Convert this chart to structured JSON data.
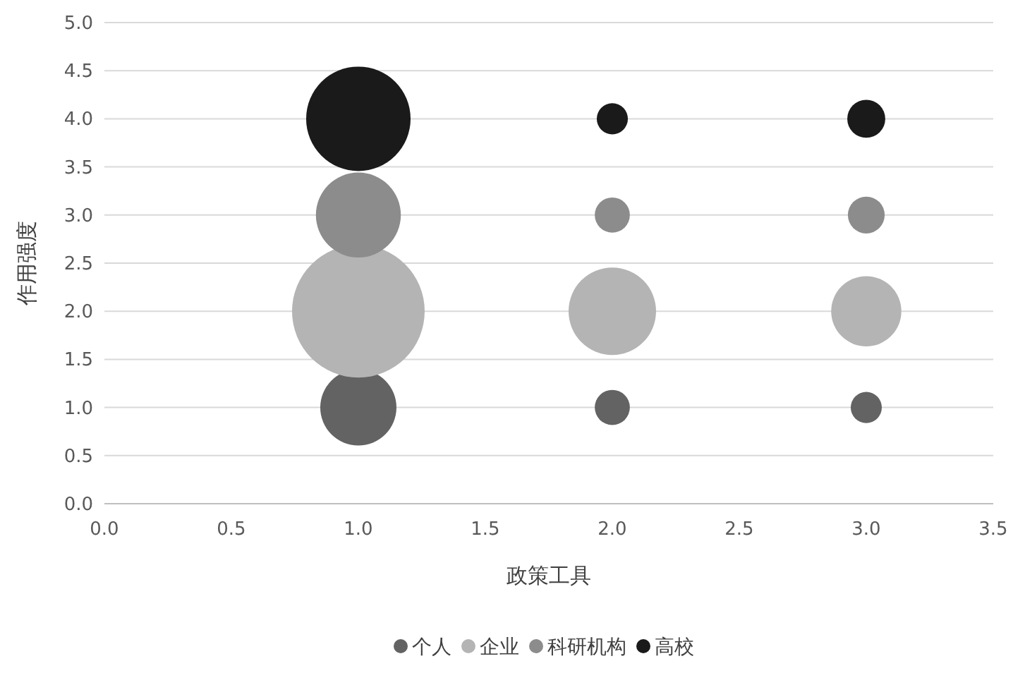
{
  "chart_data": {
    "type": "bubble",
    "xlabel": "政策工具",
    "ylabel": "作用强度",
    "xlim": [
      0,
      3.5
    ],
    "xticks": [
      {
        "value": 0,
        "label": "0.0"
      },
      {
        "value": 0.5,
        "label": "0.5"
      },
      {
        "value": 1,
        "label": "1.0"
      },
      {
        "value": 1.5,
        "label": "1.5"
      },
      {
        "value": 2,
        "label": "2.0"
      },
      {
        "value": 2.5,
        "label": "2.5"
      },
      {
        "value": 3,
        "label": "3.0"
      },
      {
        "value": 3.5,
        "label": "3.5"
      }
    ],
    "ylim": [
      0,
      5
    ],
    "yticks": [
      {
        "value": 0,
        "label": "0.0"
      },
      {
        "value": 0.5,
        "label": "0.5"
      },
      {
        "value": 1,
        "label": "1.0"
      },
      {
        "value": 1.5,
        "label": "1.5"
      },
      {
        "value": 2,
        "label": "2.0"
      },
      {
        "value": 2.5,
        "label": "2.5"
      },
      {
        "value": 3,
        "label": "3.0"
      },
      {
        "value": 3.5,
        "label": "3.5"
      },
      {
        "value": 4,
        "label": "4.0"
      },
      {
        "value": 4.5,
        "label": "4.5"
      },
      {
        "value": 5,
        "label": "5.0"
      }
    ],
    "grid": "y",
    "legend": "bottom",
    "series": [
      {
        "name": "个人",
        "color": "#636363",
        "x": [
          1,
          2,
          3
        ],
        "values": [
          1,
          1,
          1
        ],
        "sizes": [
          0.33,
          0.07,
          0.055
        ]
      },
      {
        "name": "企业",
        "color": "#b4b4b4",
        "x": [
          1,
          2,
          3
        ],
        "values": [
          2,
          2,
          2
        ],
        "sizes": [
          1,
          0.435,
          0.28
        ]
      },
      {
        "name": "科研机构",
        "color": "#8c8c8c",
        "x": [
          1,
          2,
          3
        ],
        "values": [
          3,
          3,
          3
        ],
        "sizes": [
          0.41,
          0.07,
          0.077
        ]
      },
      {
        "name": "高校",
        "color": "#1a1a1a",
        "x": [
          1,
          2,
          3
        ],
        "values": [
          4,
          4,
          4
        ],
        "sizes": [
          0.62,
          0.055,
          0.082
        ]
      }
    ]
  }
}
